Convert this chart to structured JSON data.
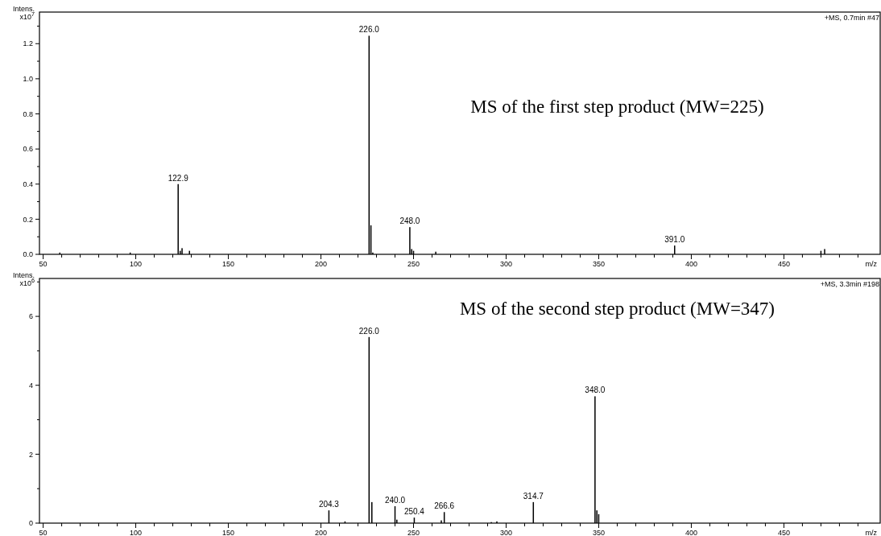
{
  "chart_data": [
    {
      "type": "bar",
      "title": "MS of the first step product (MW=225)",
      "subtitle": "+MS, 0.7min #47",
      "xlabel": "m/z",
      "ylabel": "Intens. x10$^{7}$",
      "color": "#000000",
      "x": [
        59,
        97,
        122.9,
        124,
        125,
        129,
        226.0,
        227,
        228,
        248.0,
        249,
        250,
        262,
        391.0,
        470,
        472
      ],
      "values": [
        0.01,
        0.01,
        0.4,
        0.02,
        0.035,
        0.02,
        1.245,
        0.165,
        0.01,
        0.155,
        0.03,
        0.02,
        0.015,
        0.05,
        0.02,
        0.03
      ],
      "annotations": [
        {
          "text": "122.9",
          "x": 122.9,
          "y": 0.4
        },
        {
          "text": "226.0",
          "x": 226.0,
          "y": 1.245
        },
        {
          "text": "248.0",
          "x": 248.0,
          "y": 0.155
        },
        {
          "text": "391.0",
          "x": 391.0,
          "y": 0.05
        }
      ],
      "xlim": [
        48,
        502
      ],
      "xticks": [
        50,
        {
          "value": 60,
          "label": null
        },
        {
          "value": 70,
          "label": null
        },
        {
          "value": 80,
          "label": null
        },
        {
          "value": 90,
          "label": null
        },
        100,
        {
          "value": 110,
          "label": null
        },
        {
          "value": 120,
          "label": null
        },
        {
          "value": 130,
          "label": null
        },
        {
          "value": 140,
          "label": null
        },
        150,
        {
          "value": 160,
          "label": null
        },
        {
          "value": 170,
          "label": null
        },
        {
          "value": 180,
          "label": null
        },
        {
          "value": 190,
          "label": null
        },
        200,
        {
          "value": 210,
          "label": null
        },
        {
          "value": 220,
          "label": null
        },
        {
          "value": 230,
          "label": null
        },
        {
          "value": 240,
          "label": null
        },
        250,
        {
          "value": 260,
          "label": null
        },
        {
          "value": 270,
          "label": null
        },
        {
          "value": 280,
          "label": null
        },
        {
          "value": 290,
          "label": null
        },
        300,
        {
          "value": 310,
          "label": null
        },
        {
          "value": 320,
          "label": null
        },
        {
          "value": 330,
          "label": null
        },
        {
          "value": 340,
          "label": null
        },
        350,
        {
          "value": 360,
          "label": null
        },
        {
          "value": 370,
          "label": null
        },
        {
          "value": 380,
          "label": null
        },
        {
          "value": 390,
          "label": null
        },
        400,
        {
          "value": 410,
          "label": null
        },
        {
          "value": 420,
          "label": null
        },
        {
          "value": 430,
          "label": null
        },
        {
          "value": 440,
          "label": null
        },
        450,
        {
          "value": 460,
          "label": null
        },
        {
          "value": 470,
          "label": null
        },
        {
          "value": 480,
          "label": null
        },
        {
          "value": 490,
          "label": null
        }
      ],
      "ylim": [
        0,
        1.38
      ],
      "yticks": [
        {
          "value": 0,
          "label": "0.0"
        },
        {
          "value": 0.1,
          "label": null
        },
        0.2,
        {
          "value": 0.3,
          "label": null
        },
        0.4,
        {
          "value": 0.5,
          "label": null
        },
        0.6,
        {
          "value": 0.7,
          "label": null
        },
        0.8,
        {
          "value": 0.9,
          "label": null
        },
        {
          "value": 1,
          "label": "1.0"
        },
        {
          "value": 1.1,
          "label": null
        },
        1.2,
        {
          "value": 1.3,
          "label": null
        }
      ],
      "grid": false
    },
    {
      "type": "bar",
      "title": "MS of the second step product (MW=347)",
      "subtitle": "+MS, 3.3min #198",
      "xlabel": "m/z",
      "ylabel": "Intens. x10$^{6}$",
      "color": "#000000",
      "x": [
        204.3,
        213,
        226.0,
        227.5,
        240.0,
        241,
        250.4,
        265,
        266.6,
        292,
        295,
        314.7,
        348.0,
        349,
        350
      ],
      "values": [
        0.37,
        0.05,
        5.4,
        0.61,
        0.49,
        0.1,
        0.16,
        0.08,
        0.32,
        0.03,
        0.05,
        0.61,
        3.68,
        0.37,
        0.26
      ],
      "annotations": [
        {
          "text": "204.3",
          "x": 204.3,
          "y": 0.37
        },
        {
          "text": "226.0",
          "x": 226.0,
          "y": 5.4
        },
        {
          "text": "240.0",
          "x": 240.0,
          "y": 0.49
        },
        {
          "text": "250.4",
          "x": 250.4,
          "y": 0.16
        },
        {
          "text": "266.6",
          "x": 266.6,
          "y": 0.32
        },
        {
          "text": "314.7",
          "x": 314.7,
          "y": 0.61
        },
        {
          "text": "348.0",
          "x": 348.0,
          "y": 3.68
        }
      ],
      "xlim": [
        48,
        502
      ],
      "xticks": [
        50,
        {
          "value": 60,
          "label": null
        },
        {
          "value": 70,
          "label": null
        },
        {
          "value": 80,
          "label": null
        },
        {
          "value": 90,
          "label": null
        },
        100,
        {
          "value": 110,
          "label": null
        },
        {
          "value": 120,
          "label": null
        },
        {
          "value": 130,
          "label": null
        },
        {
          "value": 140,
          "label": null
        },
        150,
        {
          "value": 160,
          "label": null
        },
        {
          "value": 170,
          "label": null
        },
        {
          "value": 180,
          "label": null
        },
        {
          "value": 190,
          "label": null
        },
        200,
        {
          "value": 210,
          "label": null
        },
        {
          "value": 220,
          "label": null
        },
        {
          "value": 230,
          "label": null
        },
        {
          "value": 240,
          "label": null
        },
        250,
        {
          "value": 260,
          "label": null
        },
        {
          "value": 270,
          "label": null
        },
        {
          "value": 280,
          "label": null
        },
        {
          "value": 290,
          "label": null
        },
        300,
        {
          "value": 310,
          "label": null
        },
        {
          "value": 320,
          "label": null
        },
        {
          "value": 330,
          "label": null
        },
        {
          "value": 340,
          "label": null
        },
        350,
        {
          "value": 360,
          "label": null
        },
        {
          "value": 370,
          "label": null
        },
        {
          "value": 380,
          "label": null
        },
        {
          "value": 390,
          "label": null
        },
        400,
        {
          "value": 410,
          "label": null
        },
        {
          "value": 420,
          "label": null
        },
        {
          "value": 430,
          "label": null
        },
        {
          "value": 440,
          "label": null
        },
        450,
        {
          "value": 460,
          "label": null
        },
        {
          "value": 470,
          "label": null
        },
        {
          "value": 480,
          "label": null
        },
        {
          "value": 490,
          "label": null
        }
      ],
      "ylim": [
        0,
        7.1
      ],
      "yticks": [
        0,
        {
          "value": 1,
          "label": null
        },
        2,
        {
          "value": 3,
          "label": null
        },
        4,
        {
          "value": 5,
          "label": null
        },
        6,
        {
          "value": 7,
          "label": null
        }
      ],
      "grid": false
    }
  ]
}
